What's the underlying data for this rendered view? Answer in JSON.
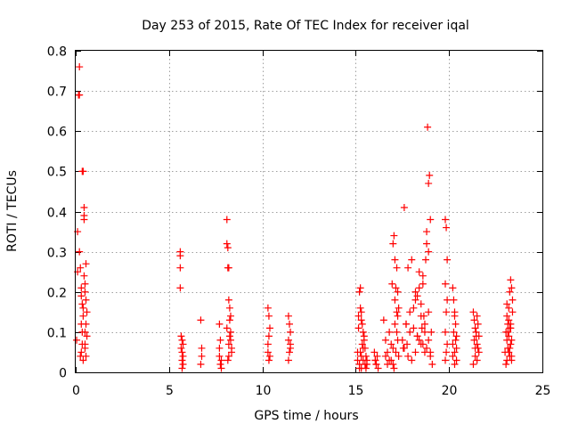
{
  "chart_data": {
    "type": "scatter",
    "title": "Day 253 of 2015, Rate Of TEC Index for receiver iqal",
    "xlabel": "GPS time / hours",
    "ylabel": "ROTI / TECUs",
    "xlim": [
      0,
      25
    ],
    "ylim": [
      0,
      0.8
    ],
    "xticks": [
      0,
      5,
      10,
      15,
      20,
      25
    ],
    "yticks": [
      0,
      0.1,
      0.2,
      0.3,
      0.4,
      0.5,
      0.6,
      0.7,
      0.8
    ],
    "xtick_labels": [
      "0",
      "5",
      "10",
      "15",
      "20",
      "25"
    ],
    "ytick_labels": [
      "0",
      "0.1",
      "0.2",
      "0.3",
      "0.4",
      "0.5",
      "0.6",
      "0.7",
      "0.8"
    ],
    "grid": true,
    "marker": "+",
    "color": "#ff0000",
    "series": [
      {
        "name": "ROTI",
        "x": [
          0.05,
          0.1,
          0.1,
          0.15,
          0.2,
          0.2,
          0.25,
          0.25,
          0.3,
          0.3,
          0.3,
          0.35,
          0.35,
          0.35,
          0.4,
          0.4,
          0.4,
          0.45,
          0.45,
          0.45,
          0.5,
          0.5,
          0.5,
          0.5,
          0.55,
          0.55,
          0.55,
          0.55,
          0.6,
          0.6,
          0.2,
          0.3,
          0.4,
          0.5,
          0.45,
          0.35,
          5.6,
          5.6,
          5.6,
          5.65,
          5.65,
          5.7,
          5.7,
          5.7,
          5.75,
          5.75,
          5.75,
          5.6,
          5.7,
          6.7,
          6.75,
          6.7,
          6.75,
          7.7,
          7.75,
          7.8,
          7.7,
          7.8,
          7.75,
          7.7,
          8.1,
          8.1,
          8.15,
          8.15,
          8.2,
          8.2,
          8.25,
          8.25,
          8.3,
          8.3,
          8.35,
          8.35,
          8.1,
          8.2,
          8.3,
          8.2,
          8.25,
          8.15,
          10.3,
          10.35,
          10.4,
          10.35,
          10.3,
          10.4,
          10.35,
          10.3,
          11.4,
          11.45,
          11.5,
          11.4,
          11.5,
          11.45,
          11.4,
          11.5,
          15.1,
          15.15,
          15.2,
          15.25,
          15.3,
          15.35,
          15.4,
          15.45,
          15.5,
          15.55,
          15.6,
          15.2,
          15.3,
          15.4,
          15.25,
          15.35,
          15.45,
          15.15,
          15.5,
          15.55,
          15.3,
          15.4,
          15.6,
          15.2,
          15.1,
          15.3,
          15.25,
          16.0,
          16.05,
          16.1,
          16.15,
          16.2,
          16.1,
          16.05,
          16.5,
          16.6,
          16.7,
          16.8,
          16.9,
          17.0,
          17.05,
          17.1,
          17.15,
          17.2,
          17.25,
          17.3,
          16.6,
          16.8,
          17.0,
          17.1,
          17.2,
          17.25,
          17.15,
          17.05,
          16.9,
          16.7,
          17.2,
          17.25,
          17.1,
          17.0,
          17.3,
          16.95,
          17.5,
          17.6,
          17.7,
          17.8,
          17.9,
          18.0,
          18.1,
          18.2,
          18.3,
          18.4,
          18.5,
          18.6,
          18.7,
          18.8,
          18.9,
          19.0,
          19.1,
          17.6,
          17.8,
          18.0,
          18.2,
          18.4,
          18.6,
          18.8,
          19.0,
          18.3,
          18.5,
          18.7,
          18.9,
          18.85,
          18.95,
          18.9,
          19.0,
          18.8,
          18.75,
          18.6,
          18.4,
          18.2,
          17.9,
          17.7,
          18.1,
          18.3,
          18.5,
          18.7,
          19.05,
          18.9,
          18.65,
          18.55,
          17.55,
          17.75,
          19.8,
          19.85,
          19.9,
          19.8,
          19.9,
          19.85,
          19.8,
          19.9,
          19.85,
          19.8,
          20.2,
          20.25,
          20.3,
          20.35,
          20.4,
          20.2,
          20.3,
          20.4,
          20.25,
          20.35,
          20.3,
          20.2,
          20.4,
          20.3,
          21.3,
          21.35,
          21.4,
          21.45,
          21.5,
          21.55,
          21.6,
          21.4,
          21.5,
          21.35,
          21.45,
          21.55,
          21.3,
          21.5,
          21.4,
          21.6,
          23.0,
          23.05,
          23.1,
          23.15,
          23.2,
          23.25,
          23.3,
          23.35,
          23.4,
          23.1,
          23.2,
          23.3,
          23.15,
          23.25,
          23.35,
          23.05,
          23.2,
          23.3,
          23.4,
          23.1,
          23.25,
          23.35,
          23.2,
          23.3,
          23.15,
          23.25,
          23.35,
          23.1
        ],
        "y": [
          0.08,
          0.35,
          0.25,
          0.69,
          0.69,
          0.76,
          0.04,
          0.26,
          0.19,
          0.12,
          0.05,
          0.5,
          0.1,
          0.07,
          0.5,
          0.16,
          0.03,
          0.41,
          0.39,
          0.24,
          0.22,
          0.1,
          0.07,
          0.2,
          0.27,
          0.12,
          0.04,
          0.18,
          0.09,
          0.15,
          0.3,
          0.21,
          0.14,
          0.06,
          0.38,
          0.17,
          0.29,
          0.26,
          0.21,
          0.09,
          0.06,
          0.05,
          0.03,
          0.01,
          0.07,
          0.04,
          0.02,
          0.3,
          0.08,
          0.13,
          0.04,
          0.02,
          0.06,
          0.12,
          0.08,
          0.03,
          0.06,
          0.01,
          0.02,
          0.04,
          0.38,
          0.32,
          0.31,
          0.26,
          0.26,
          0.18,
          0.16,
          0.13,
          0.1,
          0.08,
          0.06,
          0.05,
          0.11,
          0.04,
          0.14,
          0.07,
          0.09,
          0.03,
          0.16,
          0.14,
          0.11,
          0.09,
          0.07,
          0.04,
          0.03,
          0.05,
          0.14,
          0.12,
          0.1,
          0.08,
          0.06,
          0.05,
          0.03,
          0.07,
          0.05,
          0.14,
          0.2,
          0.21,
          0.15,
          0.12,
          0.1,
          0.08,
          0.06,
          0.04,
          0.03,
          0.02,
          0.01,
          0.03,
          0.05,
          0.07,
          0.09,
          0.11,
          0.02,
          0.01,
          0.04,
          0.06,
          0.02,
          0.01,
          0.03,
          0.13,
          0.16,
          0.05,
          0.03,
          0.02,
          0.04,
          0.01,
          0.02,
          0.03,
          0.13,
          0.08,
          0.05,
          0.1,
          0.07,
          0.32,
          0.34,
          0.28,
          0.21,
          0.26,
          0.2,
          0.16,
          0.04,
          0.03,
          0.02,
          0.12,
          0.15,
          0.08,
          0.05,
          0.01,
          0.03,
          0.02,
          0.1,
          0.14,
          0.18,
          0.06,
          0.04,
          0.22,
          0.08,
          0.41,
          0.12,
          0.26,
          0.1,
          0.28,
          0.16,
          0.2,
          0.09,
          0.25,
          0.14,
          0.22,
          0.1,
          0.35,
          0.3,
          0.05,
          0.02,
          0.06,
          0.04,
          0.03,
          0.05,
          0.08,
          0.07,
          0.06,
          0.04,
          0.19,
          0.17,
          0.12,
          0.15,
          0.61,
          0.49,
          0.47,
          0.38,
          0.32,
          0.28,
          0.24,
          0.21,
          0.18,
          0.15,
          0.12,
          0.11,
          0.09,
          0.07,
          0.05,
          0.1,
          0.08,
          0.14,
          0.11,
          0.06,
          0.07,
          0.38,
          0.36,
          0.28,
          0.22,
          0.18,
          0.15,
          0.1,
          0.07,
          0.05,
          0.03,
          0.21,
          0.18,
          0.15,
          0.12,
          0.09,
          0.07,
          0.05,
          0.03,
          0.1,
          0.08,
          0.14,
          0.04,
          0.06,
          0.02,
          0.15,
          0.13,
          0.11,
          0.09,
          0.07,
          0.06,
          0.05,
          0.04,
          0.03,
          0.08,
          0.1,
          0.12,
          0.02,
          0.14,
          0.06,
          0.09,
          0.05,
          0.1,
          0.08,
          0.12,
          0.16,
          0.2,
          0.23,
          0.21,
          0.18,
          0.14,
          0.13,
          0.11,
          0.06,
          0.04,
          0.03,
          0.02,
          0.09,
          0.07,
          0.15,
          0.17,
          0.11,
          0.08,
          0.05,
          0.12,
          0.1,
          0.06,
          0.04,
          0.03
        ]
      }
    ]
  }
}
